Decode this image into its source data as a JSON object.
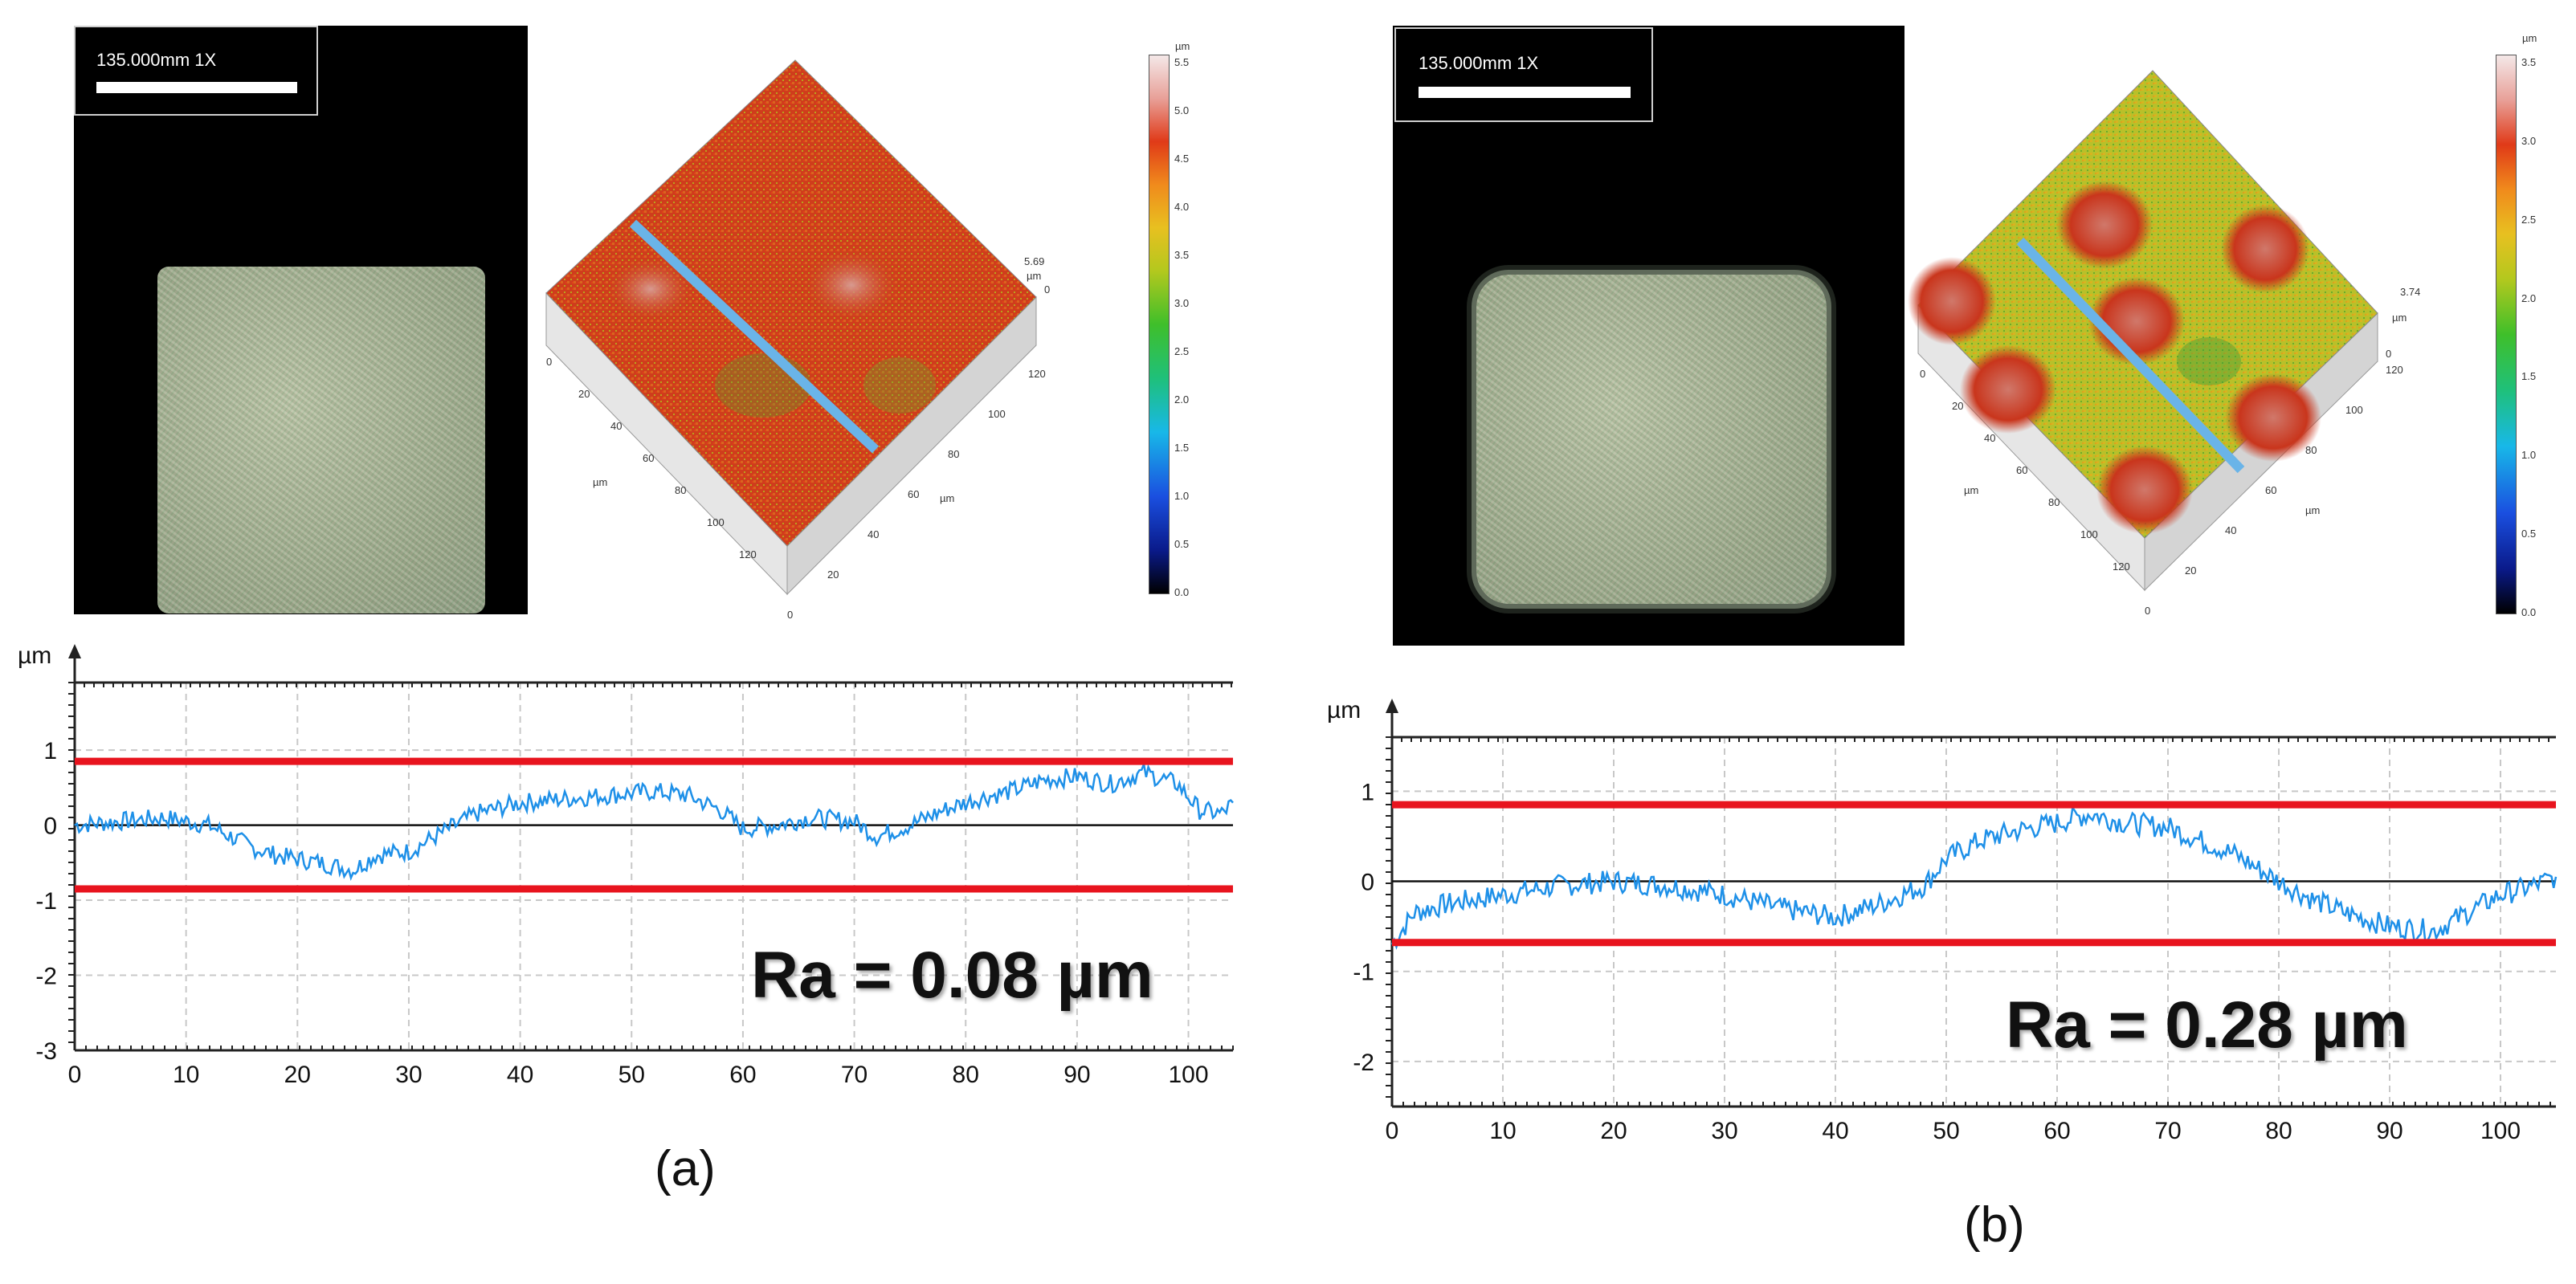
{
  "panels": [
    {
      "id": "a",
      "caption": "(a)",
      "ra_label": "Ra = 0.08 µm",
      "scale_label": "135.000mm   1X",
      "colorbar": {
        "unit": "µm",
        "ticks": [
          "0.0",
          "0.5",
          "1.0",
          "1.5",
          "2.0",
          "2.5",
          "3.0",
          "3.5",
          "4.0",
          "4.5",
          "5.0",
          "5.5"
        ],
        "max_label": "5.69",
        "zero_label": "0",
        "max_unit": "µm"
      },
      "surface_axis_ticks": [
        "0",
        "20",
        "40",
        "60",
        "80",
        "100",
        "120"
      ],
      "surface_axis_unit": "µm"
    },
    {
      "id": "b",
      "caption": "(b)",
      "ra_label": "Ra = 0.28 µm",
      "scale_label": "135.000mm   1X",
      "colorbar": {
        "unit": "µm",
        "ticks": [
          "0.0",
          "0.5",
          "1.0",
          "1.5",
          "2.0",
          "2.5",
          "3.0",
          "3.5"
        ],
        "max_label": "3.74",
        "zero_label": "0",
        "max_unit": "µm"
      },
      "surface_axis_ticks": [
        "0",
        "20",
        "40",
        "60",
        "80",
        "100",
        "120"
      ],
      "surface_axis_unit": "µm"
    }
  ],
  "chart_data": [
    {
      "type": "line",
      "title": "",
      "xlabel": "",
      "ylabel": "µm",
      "xlim": [
        0,
        104
      ],
      "ylim": [
        -3,
        1.9
      ],
      "x_ticks": [
        0,
        10,
        20,
        30,
        40,
        50,
        60,
        70,
        80,
        90,
        100
      ],
      "y_ticks": [
        1,
        0,
        -1,
        -2,
        -3
      ],
      "x_tick_labels": [
        "0",
        "10",
        "20",
        "30",
        "40",
        "50",
        "60",
        "70",
        "80",
        "90",
        "100"
      ],
      "y_tick_labels": [
        "1",
        "0",
        "-1",
        "-2",
        "-3"
      ],
      "grid": true,
      "ref_lines": {
        "upper": 0.85,
        "lower": -0.85,
        "zero": 0
      },
      "ra_value": 0.08,
      "series": [
        {
          "name": "profile",
          "color": "#1e90e8",
          "x": [
            0,
            4,
            8,
            12,
            16,
            18,
            20,
            22,
            25,
            27,
            30,
            33,
            36,
            40,
            44,
            48,
            52,
            55,
            58,
            60,
            63,
            66,
            70,
            72,
            75,
            78,
            81,
            84,
            87,
            90,
            93,
            96,
            99,
            101,
            103,
            104
          ],
          "y": [
            0.0,
            0.05,
            0.1,
            0.0,
            -0.3,
            -0.4,
            -0.45,
            -0.5,
            -0.6,
            -0.4,
            -0.35,
            -0.1,
            0.15,
            0.3,
            0.35,
            0.4,
            0.45,
            0.4,
            0.2,
            -0.05,
            0.0,
            0.1,
            0.05,
            -0.15,
            0.0,
            0.2,
            0.35,
            0.45,
            0.6,
            0.65,
            0.55,
            0.7,
            0.55,
            0.2,
            0.15,
            0.3
          ]
        }
      ]
    },
    {
      "type": "line",
      "title": "",
      "xlabel": "",
      "ylabel": "µm",
      "xlim": [
        0,
        105
      ],
      "ylim": [
        -2.5,
        1.6
      ],
      "x_ticks": [
        0,
        10,
        20,
        30,
        40,
        50,
        60,
        70,
        80,
        90,
        100
      ],
      "y_ticks": [
        1,
        0,
        -1,
        -2
      ],
      "x_tick_labels": [
        "0",
        "10",
        "20",
        "30",
        "40",
        "50",
        "60",
        "70",
        "80",
        "90",
        "100"
      ],
      "y_tick_labels": [
        "1",
        "0",
        "-1",
        "-2"
      ],
      "grid": true,
      "ref_lines": {
        "upper": 0.85,
        "lower": -0.68,
        "zero": 0
      },
      "ra_value": 0.28,
      "series": [
        {
          "name": "profile",
          "color": "#1e90e8",
          "x": [
            0,
            2,
            5,
            10,
            15,
            20,
            25,
            30,
            35,
            40,
            44,
            48,
            50,
            53,
            56,
            60,
            63,
            66,
            70,
            73,
            76,
            80,
            83,
            86,
            90,
            94,
            97,
            100,
            103,
            105
          ],
          "y": [
            -0.7,
            -0.35,
            -0.25,
            -0.15,
            -0.05,
            0.0,
            -0.05,
            -0.15,
            -0.3,
            -0.4,
            -0.25,
            -0.05,
            0.25,
            0.45,
            0.55,
            0.65,
            0.75,
            0.65,
            0.6,
            0.45,
            0.3,
            0.0,
            -0.2,
            -0.35,
            -0.5,
            -0.55,
            -0.35,
            -0.15,
            -0.05,
            0.05
          ]
        }
      ]
    }
  ]
}
